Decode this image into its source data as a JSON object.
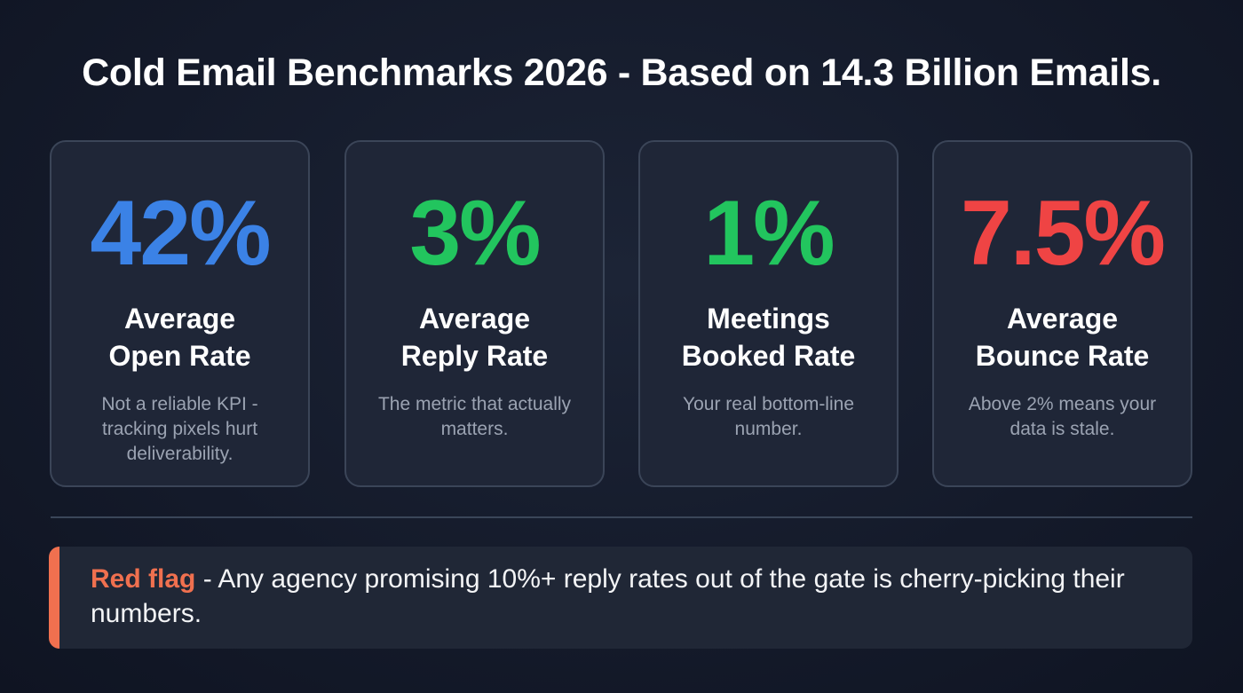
{
  "title": "Cold Email Benchmarks 2026 - Based on 14.3 Billion Emails.",
  "cards": [
    {
      "value": "42%",
      "label_line1": "Average",
      "label_line2": "Open Rate",
      "description": "Not a reliable KPI - tracking pixels hurt deliverability.",
      "color": "#3b82e6"
    },
    {
      "value": "3%",
      "label_line1": "Average",
      "label_line2": "Reply Rate",
      "description": "The metric that actually matters.",
      "color": "#22c55e"
    },
    {
      "value": "1%",
      "label_line1": "Meetings",
      "label_line2": "Booked Rate",
      "description": "Your real bottom-line number.",
      "color": "#22c55e"
    },
    {
      "value": "7.5%",
      "label_line1": "Average",
      "label_line2": "Bounce Rate",
      "description": "Above 2% means your data is stale.",
      "color": "#ef4444"
    }
  ],
  "callout": {
    "highlight": "Red flag",
    "text": " - Any agency promising 10%+ reply rates out of the gate is cherry-picking their numbers.",
    "accent_color": "#f0704f"
  }
}
